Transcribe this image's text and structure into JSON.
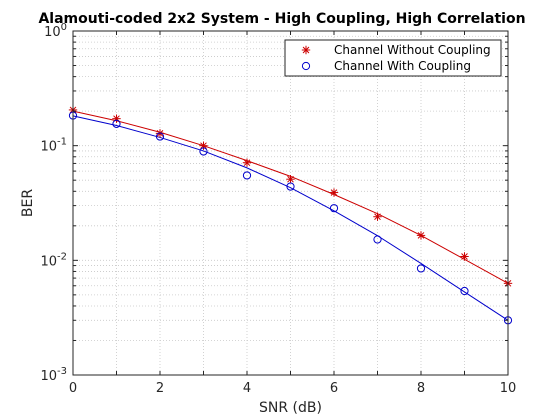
{
  "chart_data": {
    "type": "line",
    "title": "Alamouti-coded 2x2 System - High Coupling, High Correlation",
    "xlabel": "SNR (dB)",
    "ylabel": "BER",
    "xlim": [
      0,
      10
    ],
    "ylim": [
      0.001,
      1
    ],
    "yscale": "log",
    "grid": true,
    "legend_position": "top-right",
    "x_ticks": [
      "0",
      "2",
      "4",
      "6",
      "8",
      "10"
    ],
    "y_ticks": [
      {
        "base": "10",
        "exp": "0",
        "value": 1
      },
      {
        "base": "10",
        "exp": "-1",
        "value": 0.1
      },
      {
        "base": "10",
        "exp": "-2",
        "value": 0.01
      },
      {
        "base": "10",
        "exp": "-3",
        "value": 0.001
      }
    ],
    "series": [
      {
        "name": "Channel Without Coupling",
        "color": "#cc0000",
        "marker": "asterisk",
        "x": [
          0,
          1,
          2,
          3,
          4,
          5,
          6,
          7,
          8,
          9,
          10
        ],
        "points": [
          0.205,
          0.172,
          0.128,
          0.1,
          0.071,
          0.051,
          0.039,
          0.024,
          0.0165,
          0.0108,
          0.0063
        ],
        "curve": [
          0.2,
          0.165,
          0.131,
          0.1,
          0.074,
          0.054,
          0.0375,
          0.0255,
          0.0165,
          0.0102,
          0.0063
        ]
      },
      {
        "name": "Channel With Coupling",
        "color": "#0000cc",
        "marker": "circle",
        "x": [
          0,
          1,
          2,
          3,
          4,
          5,
          6,
          7,
          8,
          9,
          10
        ],
        "points": [
          0.183,
          0.155,
          0.12,
          0.089,
          0.055,
          0.044,
          0.0285,
          0.0152,
          0.0085,
          0.0054,
          0.003
        ],
        "curve": [
          0.182,
          0.15,
          0.118,
          0.09,
          0.064,
          0.043,
          0.027,
          0.0164,
          0.0094,
          0.0053,
          0.003
        ]
      }
    ]
  }
}
